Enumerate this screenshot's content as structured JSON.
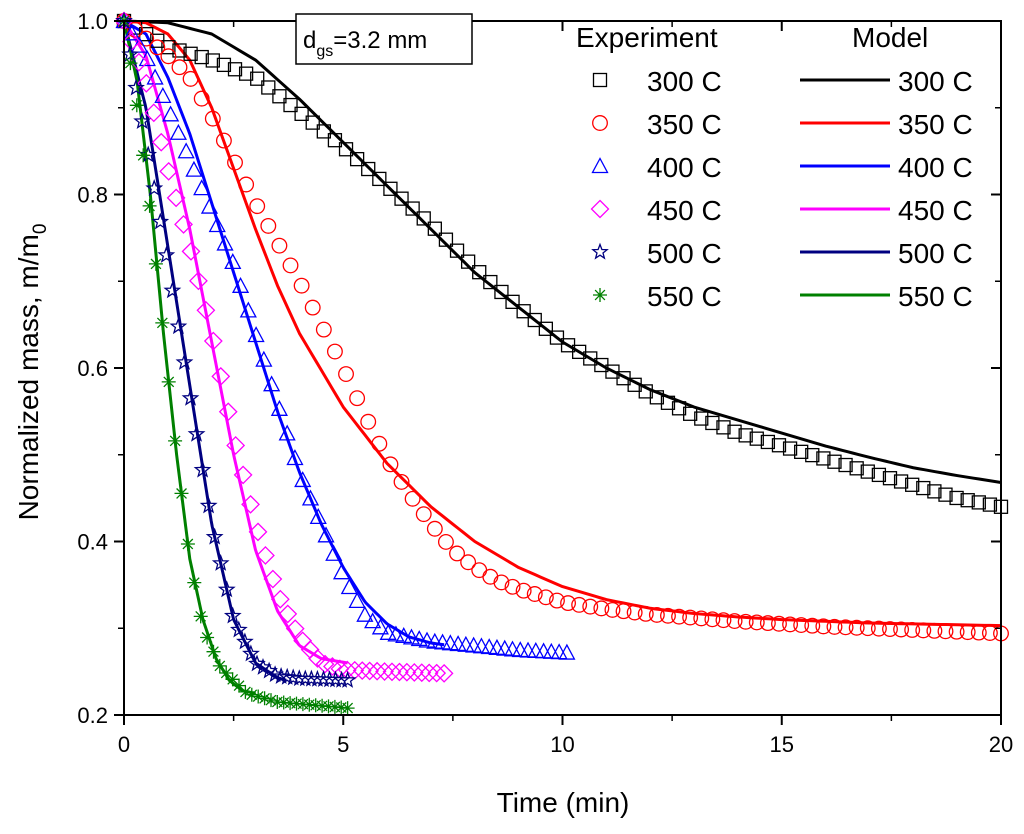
{
  "chart_data": {
    "type": "scatter",
    "title": "",
    "xlabel": "Time (min)",
    "ylabel": "Normalized mass, m/m",
    "ylabel_sub": "0",
    "xlim": [
      0,
      20
    ],
    "ylim": [
      0.2,
      1.0
    ],
    "x_ticks": [
      0,
      5,
      10,
      15,
      20
    ],
    "y_ticks": [
      0.2,
      0.4,
      0.6,
      0.8,
      1.0
    ],
    "x_tick_labels": [
      "0",
      "5",
      "10",
      "15",
      "20"
    ],
    "y_tick_labels": [
      "0.2",
      "0.4",
      "0.6",
      "0.8",
      "1.0"
    ],
    "grid": false,
    "annotation": {
      "main": "d",
      "sub": "gs",
      "rest": "=3.2 mm"
    },
    "legend": {
      "experiment_title": "Experiment",
      "model_title": "Model",
      "placement": "top-right"
    },
    "series": [
      {
        "name": "300 C",
        "color": "#000000",
        "marker": "square",
        "experiment": {
          "t_end": 20.0,
          "n": 80,
          "points": [
            [
              0,
              1.0
            ],
            [
              1,
              0.97
            ],
            [
              2,
              0.955
            ],
            [
              3,
              0.935
            ],
            [
              4,
              0.895
            ],
            [
              5,
              0.855
            ],
            [
              6,
              0.81
            ],
            [
              7,
              0.765
            ],
            [
              8,
              0.715
            ],
            [
              9,
              0.67
            ],
            [
              10,
              0.63
            ],
            [
              11,
              0.6
            ],
            [
              12,
              0.57
            ],
            [
              13,
              0.545
            ],
            [
              14,
              0.525
            ],
            [
              15,
              0.51
            ],
            [
              16,
              0.495
            ],
            [
              17,
              0.48
            ],
            [
              18,
              0.465
            ],
            [
              19,
              0.45
            ],
            [
              20,
              0.44
            ]
          ]
        },
        "model": {
          "t_end": 20.0,
          "points": [
            [
              0,
              1.0
            ],
            [
              1,
              0.998
            ],
            [
              2,
              0.985
            ],
            [
              3,
              0.955
            ],
            [
              4,
              0.91
            ],
            [
              5,
              0.86
            ],
            [
              6,
              0.81
            ],
            [
              7,
              0.76
            ],
            [
              8,
              0.71
            ],
            [
              9,
              0.67
            ],
            [
              10,
              0.63
            ],
            [
              11,
              0.6
            ],
            [
              12,
              0.575
            ],
            [
              13,
              0.555
            ],
            [
              14,
              0.54
            ],
            [
              15,
              0.525
            ],
            [
              16,
              0.51
            ],
            [
              17,
              0.497
            ],
            [
              18,
              0.485
            ],
            [
              19,
              0.476
            ],
            [
              20,
              0.468
            ]
          ]
        }
      },
      {
        "name": "350 C",
        "color": "#ff0000",
        "marker": "circle",
        "experiment": {
          "t_end": 20.0,
          "n": 80,
          "points": [
            [
              0,
              1.0
            ],
            [
              0.5,
              0.98
            ],
            [
              1,
              0.96
            ],
            [
              1.5,
              0.935
            ],
            [
              2,
              0.89
            ],
            [
              2.5,
              0.84
            ],
            [
              3,
              0.79
            ],
            [
              3.5,
              0.745
            ],
            [
              4,
              0.7
            ],
            [
              4.5,
              0.65
            ],
            [
              5,
              0.6
            ],
            [
              5.5,
              0.545
            ],
            [
              6,
              0.495
            ],
            [
              6.5,
              0.455
            ],
            [
              7,
              0.42
            ],
            [
              7.5,
              0.39
            ],
            [
              8,
              0.37
            ],
            [
              8.5,
              0.355
            ],
            [
              9,
              0.345
            ],
            [
              10,
              0.33
            ],
            [
              11,
              0.322
            ],
            [
              12,
              0.316
            ],
            [
              13,
              0.312
            ],
            [
              14,
              0.308
            ],
            [
              15,
              0.305
            ],
            [
              16,
              0.302
            ],
            [
              17,
              0.3
            ],
            [
              18,
              0.298
            ],
            [
              19,
              0.296
            ],
            [
              20,
              0.294
            ]
          ]
        },
        "model": {
          "t_end": 20.0,
          "points": [
            [
              0,
              1.0
            ],
            [
              0.5,
              0.998
            ],
            [
              1,
              0.985
            ],
            [
              1.5,
              0.955
            ],
            [
              2,
              0.9
            ],
            [
              2.5,
              0.83
            ],
            [
              3,
              0.76
            ],
            [
              3.5,
              0.695
            ],
            [
              4,
              0.64
            ],
            [
              5,
              0.555
            ],
            [
              6,
              0.49
            ],
            [
              7,
              0.44
            ],
            [
              8,
              0.4
            ],
            [
              9,
              0.37
            ],
            [
              10,
              0.348
            ],
            [
              11,
              0.333
            ],
            [
              12,
              0.323
            ],
            [
              13,
              0.317
            ],
            [
              14,
              0.313
            ],
            [
              15,
              0.31
            ],
            [
              16,
              0.308
            ],
            [
              17,
              0.306
            ],
            [
              18,
              0.305
            ],
            [
              19,
              0.304
            ],
            [
              20,
              0.303
            ]
          ]
        }
      },
      {
        "name": "400 C",
        "color": "#0000ff",
        "marker": "triangle",
        "experiment": {
          "t_end": 10.1,
          "n": 58,
          "points": [
            [
              0,
              1.0
            ],
            [
              0.5,
              0.96
            ],
            [
              1,
              0.9
            ],
            [
              1.5,
              0.84
            ],
            [
              2,
              0.78
            ],
            [
              2.5,
              0.72
            ],
            [
              3,
              0.64
            ],
            [
              3.5,
              0.56
            ],
            [
              4,
              0.48
            ],
            [
              4.5,
              0.42
            ],
            [
              5,
              0.36
            ],
            [
              5.5,
              0.315
            ],
            [
              6,
              0.295
            ],
            [
              7,
              0.285
            ],
            [
              8,
              0.28
            ],
            [
              9,
              0.275
            ],
            [
              10.1,
              0.272
            ]
          ]
        },
        "model": {
          "t_end": 7.3,
          "points": [
            [
              0,
              1.0
            ],
            [
              0.5,
              0.985
            ],
            [
              1,
              0.935
            ],
            [
              1.5,
              0.87
            ],
            [
              2,
              0.79
            ],
            [
              2.5,
              0.71
            ],
            [
              3,
              0.63
            ],
            [
              3.5,
              0.55
            ],
            [
              4,
              0.48
            ],
            [
              4.5,
              0.42
            ],
            [
              5,
              0.37
            ],
            [
              5.5,
              0.33
            ],
            [
              6,
              0.305
            ],
            [
              6.5,
              0.29
            ],
            [
              7,
              0.283
            ],
            [
              7.3,
              0.281
            ]
          ]
        }
      },
      {
        "name": "450 C",
        "color": "#ff00ff",
        "marker": "diamond",
        "experiment": {
          "t_end": 7.3,
          "n": 44,
          "points": [
            [
              0,
              1.0
            ],
            [
              0.5,
              0.93
            ],
            [
              1,
              0.83
            ],
            [
              1.5,
              0.74
            ],
            [
              2,
              0.64
            ],
            [
              2.5,
              0.52
            ],
            [
              3,
              0.42
            ],
            [
              3.5,
              0.34
            ],
            [
              4,
              0.29
            ],
            [
              4.5,
              0.26
            ],
            [
              5,
              0.252
            ],
            [
              6,
              0.25
            ],
            [
              7.3,
              0.248
            ]
          ]
        },
        "model": {
          "t_end": 5.1,
          "points": [
            [
              0,
              1.0
            ],
            [
              0.5,
              0.96
            ],
            [
              1,
              0.87
            ],
            [
              1.5,
              0.76
            ],
            [
              2,
              0.63
            ],
            [
              2.5,
              0.5
            ],
            [
              3,
              0.39
            ],
            [
              3.5,
              0.32
            ],
            [
              4,
              0.28
            ],
            [
              4.5,
              0.265
            ],
            [
              5.1,
              0.26
            ]
          ]
        }
      },
      {
        "name": "500 C",
        "color": "#000080",
        "marker": "star",
        "experiment": {
          "t_end": 5.1,
          "n": 38,
          "points": [
            [
              0,
              1.0
            ],
            [
              0.5,
              0.86
            ],
            [
              1,
              0.72
            ],
            [
              1.5,
              0.57
            ],
            [
              2,
              0.42
            ],
            [
              2.5,
              0.31
            ],
            [
              3,
              0.26
            ],
            [
              3.5,
              0.245
            ],
            [
              4,
              0.242
            ],
            [
              5.1,
              0.24
            ]
          ]
        },
        "model": {
          "t_end": 3.7,
          "points": [
            [
              0,
              1.0
            ],
            [
              0.5,
              0.9
            ],
            [
              1,
              0.74
            ],
            [
              1.5,
              0.58
            ],
            [
              2,
              0.42
            ],
            [
              2.5,
              0.31
            ],
            [
              3,
              0.26
            ],
            [
              3.5,
              0.243
            ],
            [
              3.7,
              0.24
            ]
          ]
        }
      },
      {
        "name": "550 C",
        "color": "#008000",
        "marker": "asterisk",
        "experiment": {
          "t_end": 5.1,
          "n": 36,
          "points": [
            [
              0,
              1.0
            ],
            [
              0.3,
              0.9
            ],
            [
              0.6,
              0.78
            ],
            [
              0.9,
              0.64
            ],
            [
              1.2,
              0.5
            ],
            [
              1.5,
              0.38
            ],
            [
              1.8,
              0.3
            ],
            [
              2.2,
              0.255
            ],
            [
              2.8,
              0.225
            ],
            [
              3.5,
              0.215
            ],
            [
              4.2,
              0.212
            ],
            [
              5.1,
              0.208
            ]
          ]
        },
        "model": {
          "t_end": 3.0,
          "points": [
            [
              0,
              1.0
            ],
            [
              0.3,
              0.93
            ],
            [
              0.6,
              0.8
            ],
            [
              0.9,
              0.64
            ],
            [
              1.2,
              0.5
            ],
            [
              1.5,
              0.38
            ],
            [
              1.8,
              0.31
            ],
            [
              2.1,
              0.265
            ],
            [
              2.4,
              0.24
            ],
            [
              2.7,
              0.228
            ],
            [
              3.0,
              0.225
            ]
          ]
        }
      }
    ]
  }
}
